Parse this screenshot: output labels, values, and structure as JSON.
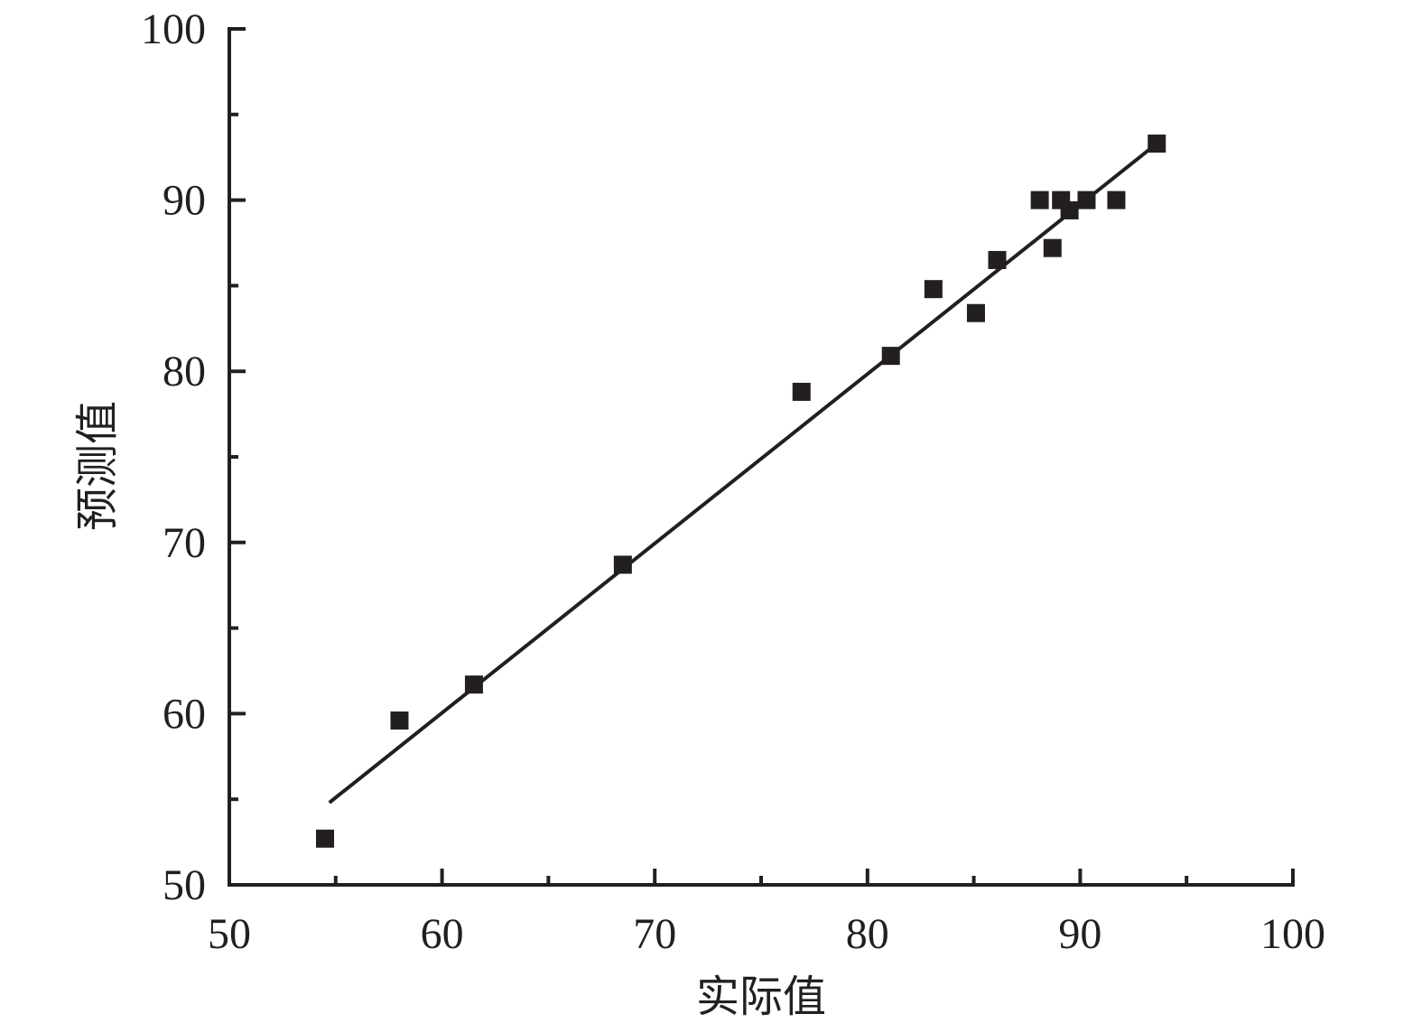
{
  "chart_data": {
    "type": "scatter",
    "title": "",
    "xlabel": "实际值",
    "ylabel": "预测值",
    "xlim": [
      50,
      100
    ],
    "ylim": [
      50,
      100
    ],
    "x_ticks": [
      50,
      60,
      70,
      80,
      90,
      100
    ],
    "y_ticks": [
      50,
      60,
      70,
      80,
      90,
      100
    ],
    "x_tick_labels": [
      "50",
      "60",
      "70",
      "80",
      "90",
      "100"
    ],
    "y_tick_labels": [
      "50",
      "60",
      "70",
      "80",
      "90",
      "100"
    ],
    "minor_tick_step": 5,
    "grid": false,
    "legend": "none",
    "colors": {
      "marker": "#231f20",
      "line": "#231f20",
      "axis": "#231f20"
    },
    "series": [
      {
        "marker": "square",
        "points": [
          {
            "x": 54.5,
            "y": 52.7
          },
          {
            "x": 58.0,
            "y": 59.6
          },
          {
            "x": 61.5,
            "y": 61.7
          },
          {
            "x": 68.5,
            "y": 68.7
          },
          {
            "x": 76.9,
            "y": 78.8
          },
          {
            "x": 81.1,
            "y": 80.9
          },
          {
            "x": 83.1,
            "y": 84.8
          },
          {
            "x": 85.1,
            "y": 83.4
          },
          {
            "x": 86.1,
            "y": 86.5
          },
          {
            "x": 88.1,
            "y": 90.0
          },
          {
            "x": 88.7,
            "y": 87.2
          },
          {
            "x": 89.1,
            "y": 90.0
          },
          {
            "x": 89.5,
            "y": 89.4
          },
          {
            "x": 90.3,
            "y": 90.0
          },
          {
            "x": 91.7,
            "y": 90.0
          },
          {
            "x": 93.6,
            "y": 93.3
          }
        ]
      }
    ],
    "fit_line": {
      "x": [
        54.7,
        93.5
      ],
      "y": [
        54.8,
        93.2
      ]
    }
  }
}
